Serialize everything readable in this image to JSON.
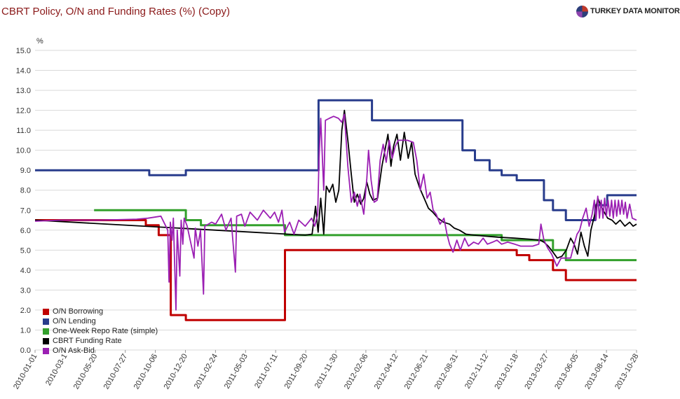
{
  "header": {
    "title": "CBRT Policy, O/N and Funding Rates (%) (Copy)",
    "brand": "TURKEY DATA MONITOR"
  },
  "chart_data": {
    "type": "line",
    "ylabel": "%",
    "ylim": [
      0,
      15
    ],
    "yticks": [
      "0.0",
      "1.0",
      "2.0",
      "3.0",
      "4.0",
      "5.0",
      "6.0",
      "7.0",
      "8.0",
      "9.0",
      "10.0",
      "11.0",
      "12.0",
      "13.0",
      "14.0",
      "15.0"
    ],
    "xlim": [
      "2010-01-01",
      "2013-10-28"
    ],
    "xticks": [
      "2010-01-01",
      "2010-03-1",
      "2010-05-20",
      "2010-07-27",
      "2010-10-06",
      "2010-12-20",
      "2011-02-24",
      "2011-05-03",
      "2011-07-11",
      "2011-09-20",
      "2011-11-30",
      "2012-02-06",
      "2012-04-12",
      "2012-06-21",
      "2012-08-31",
      "2012-11-12",
      "2013-01-18",
      "2013-03-27",
      "2013-06-05",
      "2013-08-14",
      "2013-10-28"
    ],
    "grid": true,
    "legend_position": "bottom-left",
    "series": [
      {
        "name": "O/N Borrowing",
        "color": "#c00000",
        "step": true,
        "points": [
          [
            "2010-01-01",
            6.5
          ],
          [
            "2010-09-15",
            6.25
          ],
          [
            "2010-10-15",
            5.75
          ],
          [
            "2010-11-12",
            1.75
          ],
          [
            "2010-12-17",
            1.5
          ],
          [
            "2011-08-04",
            5.0
          ],
          [
            "2013-01-23",
            4.75
          ],
          [
            "2013-02-21",
            4.5
          ],
          [
            "2013-04-17",
            4.0
          ],
          [
            "2013-05-17",
            3.5
          ],
          [
            "2013-10-28",
            3.5
          ]
        ]
      },
      {
        "name": "O/N Lending",
        "color": "#283c8c",
        "step": true,
        "points": [
          [
            "2010-01-01",
            9.0
          ],
          [
            "2010-09-23",
            8.75
          ],
          [
            "2010-12-17",
            9.0
          ],
          [
            "2011-10-21",
            12.5
          ],
          [
            "2012-02-22",
            11.5
          ],
          [
            "2012-09-19",
            10.0
          ],
          [
            "2012-10-18",
            9.5
          ],
          [
            "2012-11-21",
            9.0
          ],
          [
            "2012-12-19",
            8.75
          ],
          [
            "2013-01-23",
            8.5
          ],
          [
            "2013-03-27",
            7.5
          ],
          [
            "2013-04-17",
            7.0
          ],
          [
            "2013-05-17",
            6.5
          ],
          [
            "2013-07-24",
            7.25
          ],
          [
            "2013-08-21",
            7.75
          ],
          [
            "2013-10-28",
            7.75
          ]
        ]
      },
      {
        "name": "One-Week Repo Rate (simple)",
        "color": "#33a02c",
        "step": true,
        "points": [
          [
            "2010-05-18",
            7.0
          ],
          [
            "2010-12-17",
            6.5
          ],
          [
            "2011-01-21",
            6.25
          ],
          [
            "2011-08-04",
            5.75
          ],
          [
            "2012-12-19",
            5.5
          ],
          [
            "2013-04-17",
            5.0
          ],
          [
            "2013-05-17",
            4.5
          ],
          [
            "2013-10-28",
            4.5
          ]
        ]
      },
      {
        "name": "CBRT Funding Rate",
        "color": "#000000",
        "step": false,
        "points": [
          [
            "2010-01-01",
            6.5
          ],
          [
            "2011-09-20",
            5.75
          ],
          [
            "2011-10-06",
            5.8
          ],
          [
            "2011-10-14",
            7.2
          ],
          [
            "2011-10-20",
            5.9
          ],
          [
            "2011-10-26",
            7.6
          ],
          [
            "2011-11-02",
            5.8
          ],
          [
            "2011-11-08",
            8.2
          ],
          [
            "2011-11-15",
            7.9
          ],
          [
            "2011-11-23",
            8.3
          ],
          [
            "2011-11-30",
            7.4
          ],
          [
            "2011-12-07",
            8.0
          ],
          [
            "2011-12-14",
            11.0
          ],
          [
            "2011-12-20",
            12.0
          ],
          [
            "2011-12-28",
            10.5
          ],
          [
            "2012-01-05",
            8.8
          ],
          [
            "2012-01-12",
            7.4
          ],
          [
            "2012-01-19",
            7.8
          ],
          [
            "2012-01-27",
            7.3
          ],
          [
            "2012-02-03",
            7.6
          ],
          [
            "2012-02-10",
            8.4
          ],
          [
            "2012-02-17",
            7.8
          ],
          [
            "2012-02-24",
            7.5
          ],
          [
            "2012-03-06",
            7.6
          ],
          [
            "2012-03-16",
            9.2
          ],
          [
            "2012-03-23",
            10.0
          ],
          [
            "2012-03-30",
            10.8
          ],
          [
            "2012-04-06",
            9.2
          ],
          [
            "2012-04-12",
            10.2
          ],
          [
            "2012-04-20",
            10.8
          ],
          [
            "2012-04-28",
            9.5
          ],
          [
            "2012-05-07",
            10.9
          ],
          [
            "2012-05-16",
            9.6
          ],
          [
            "2012-05-24",
            10.4
          ],
          [
            "2012-06-01",
            8.8
          ],
          [
            "2012-06-12",
            8.1
          ],
          [
            "2012-06-22",
            7.6
          ],
          [
            "2012-07-02",
            7.1
          ],
          [
            "2012-07-12",
            6.9
          ],
          [
            "2012-07-24",
            6.6
          ],
          [
            "2012-08-06",
            6.4
          ],
          [
            "2012-08-20",
            6.3
          ],
          [
            "2012-08-31",
            6.1
          ],
          [
            "2012-09-12",
            6.0
          ],
          [
            "2012-09-27",
            5.8
          ],
          [
            "2012-10-15",
            5.75
          ],
          [
            "2012-11-12",
            5.7
          ],
          [
            "2012-12-10",
            5.65
          ],
          [
            "2013-01-18",
            5.6
          ],
          [
            "2013-02-20",
            5.55
          ],
          [
            "2013-03-18",
            5.5
          ],
          [
            "2013-03-27",
            5.4
          ],
          [
            "2013-04-06",
            5.2
          ],
          [
            "2013-04-17",
            4.9
          ],
          [
            "2013-04-27",
            4.6
          ],
          [
            "2013-05-08",
            4.7
          ],
          [
            "2013-05-18",
            5.0
          ],
          [
            "2013-05-28",
            5.6
          ],
          [
            "2013-06-05",
            5.3
          ],
          [
            "2013-06-13",
            4.8
          ],
          [
            "2013-06-21",
            5.9
          ],
          [
            "2013-06-29",
            5.2
          ],
          [
            "2013-07-07",
            4.7
          ],
          [
            "2013-07-14",
            6.0
          ],
          [
            "2013-07-22",
            6.7
          ],
          [
            "2013-07-30",
            7.6
          ],
          [
            "2013-08-07",
            7.2
          ],
          [
            "2013-08-14",
            6.9
          ],
          [
            "2013-08-22",
            6.6
          ],
          [
            "2013-09-01",
            6.5
          ],
          [
            "2013-09-10",
            6.3
          ],
          [
            "2013-09-20",
            6.5
          ],
          [
            "2013-10-01",
            6.2
          ],
          [
            "2013-10-12",
            6.4
          ],
          [
            "2013-10-20",
            6.2
          ],
          [
            "2013-10-28",
            6.3
          ]
        ]
      },
      {
        "name": "O/N Ask-Bid",
        "color": "#9b1fb3",
        "step": false,
        "points": [
          [
            "2010-01-01",
            6.45
          ],
          [
            "2010-03-01",
            6.5
          ],
          [
            "2010-06-01",
            6.5
          ],
          [
            "2010-08-25",
            6.55
          ],
          [
            "2010-09-20",
            6.6
          ],
          [
            "2010-10-20",
            6.7
          ],
          [
            "2010-11-05",
            6.0
          ],
          [
            "2010-11-08",
            3.4
          ],
          [
            "2010-11-11",
            6.4
          ],
          [
            "2010-11-15",
            5.5
          ],
          [
            "2010-11-18",
            6.6
          ],
          [
            "2010-11-24",
            2.0
          ],
          [
            "2010-11-27",
            6.0
          ],
          [
            "2010-12-03",
            3.7
          ],
          [
            "2010-12-06",
            6.5
          ],
          [
            "2010-12-10",
            5.3
          ],
          [
            "2010-12-13",
            6.6
          ],
          [
            "2010-12-20",
            6.2
          ],
          [
            "2011-01-05",
            4.6
          ],
          [
            "2011-01-08",
            6.1
          ],
          [
            "2011-01-14",
            5.2
          ],
          [
            "2011-01-20",
            6.0
          ],
          [
            "2011-01-27",
            2.8
          ],
          [
            "2011-01-30",
            6.2
          ],
          [
            "2011-02-15",
            6.4
          ],
          [
            "2011-02-24",
            6.3
          ],
          [
            "2011-03-10",
            6.8
          ],
          [
            "2011-03-20",
            6.0
          ],
          [
            "2011-04-01",
            6.6
          ],
          [
            "2011-04-11",
            3.9
          ],
          [
            "2011-04-14",
            6.7
          ],
          [
            "2011-04-25",
            6.8
          ],
          [
            "2011-05-03",
            6.2
          ],
          [
            "2011-05-15",
            6.9
          ],
          [
            "2011-06-01",
            6.5
          ],
          [
            "2011-06-15",
            7.0
          ],
          [
            "2011-07-01",
            6.6
          ],
          [
            "2011-07-11",
            6.9
          ],
          [
            "2011-07-20",
            6.4
          ],
          [
            "2011-07-28",
            7.0
          ],
          [
            "2011-08-03",
            5.9
          ],
          [
            "2011-08-15",
            6.4
          ],
          [
            "2011-08-25",
            5.8
          ],
          [
            "2011-09-05",
            6.5
          ],
          [
            "2011-09-20",
            6.2
          ],
          [
            "2011-10-05",
            6.6
          ],
          [
            "2011-10-12",
            6.2
          ],
          [
            "2011-10-19",
            6.8
          ],
          [
            "2011-10-22",
            9.5
          ],
          [
            "2011-10-26",
            11.6
          ],
          [
            "2011-11-02",
            8.0
          ],
          [
            "2011-11-06",
            11.5
          ],
          [
            "2011-11-15",
            11.6
          ],
          [
            "2011-11-25",
            11.7
          ],
          [
            "2011-12-06",
            11.6
          ],
          [
            "2011-12-14",
            11.4
          ],
          [
            "2011-12-20",
            11.8
          ],
          [
            "2011-12-28",
            9.2
          ],
          [
            "2012-01-05",
            7.4
          ],
          [
            "2012-01-12",
            7.9
          ],
          [
            "2012-01-19",
            7.2
          ],
          [
            "2012-01-25",
            7.8
          ],
          [
            "2012-02-03",
            6.8
          ],
          [
            "2012-02-10",
            8.6
          ],
          [
            "2012-02-14",
            10.0
          ],
          [
            "2012-02-20",
            8.5
          ],
          [
            "2012-02-27",
            7.4
          ],
          [
            "2012-03-05",
            7.5
          ],
          [
            "2012-03-12",
            9.5
          ],
          [
            "2012-03-19",
            10.3
          ],
          [
            "2012-03-26",
            9.4
          ],
          [
            "2012-04-02",
            10.5
          ],
          [
            "2012-04-09",
            9.6
          ],
          [
            "2012-04-16",
            10.2
          ],
          [
            "2012-04-23",
            10.5
          ],
          [
            "2012-05-01",
            10.5
          ],
          [
            "2012-05-14",
            10.5
          ],
          [
            "2012-05-28",
            10.4
          ],
          [
            "2012-06-05",
            9.5
          ],
          [
            "2012-06-13",
            8.0
          ],
          [
            "2012-06-21",
            8.8
          ],
          [
            "2012-06-29",
            7.6
          ],
          [
            "2012-07-06",
            7.9
          ],
          [
            "2012-07-13",
            7.0
          ],
          [
            "2012-07-20",
            6.8
          ],
          [
            "2012-07-29",
            6.3
          ],
          [
            "2012-08-07",
            6.6
          ],
          [
            "2012-08-14",
            5.8
          ],
          [
            "2012-08-20",
            5.3
          ],
          [
            "2012-08-28",
            4.9
          ],
          [
            "2012-09-06",
            5.5
          ],
          [
            "2012-09-14",
            5.0
          ],
          [
            "2012-09-24",
            5.6
          ],
          [
            "2012-10-03",
            5.2
          ],
          [
            "2012-10-15",
            5.4
          ],
          [
            "2012-10-26",
            5.3
          ],
          [
            "2012-11-06",
            5.6
          ],
          [
            "2012-11-16",
            5.3
          ],
          [
            "2012-11-28",
            5.4
          ],
          [
            "2012-12-08",
            5.5
          ],
          [
            "2012-12-19",
            5.3
          ],
          [
            "2013-01-02",
            5.4
          ],
          [
            "2013-01-18",
            5.3
          ],
          [
            "2013-02-01",
            5.2
          ],
          [
            "2013-02-15",
            5.2
          ],
          [
            "2013-03-01",
            5.2
          ],
          [
            "2013-03-15",
            5.3
          ],
          [
            "2013-03-20",
            6.3
          ],
          [
            "2013-03-27",
            5.5
          ],
          [
            "2013-04-05",
            5.1
          ],
          [
            "2013-04-14",
            4.8
          ],
          [
            "2013-04-26",
            4.2
          ],
          [
            "2013-05-06",
            4.6
          ],
          [
            "2013-05-17",
            4.6
          ],
          [
            "2013-05-28",
            4.6
          ],
          [
            "2013-06-04",
            5.2
          ],
          [
            "2013-06-12",
            5.8
          ],
          [
            "2013-06-18",
            6.0
          ],
          [
            "2013-06-25",
            6.6
          ],
          [
            "2013-07-03",
            7.1
          ],
          [
            "2013-07-10",
            6.2
          ],
          [
            "2013-07-17",
            6.8
          ],
          [
            "2013-07-22",
            7.5
          ],
          [
            "2013-07-26",
            6.5
          ],
          [
            "2013-07-30",
            7.7
          ],
          [
            "2013-08-03",
            6.6
          ],
          [
            "2013-08-07",
            7.5
          ],
          [
            "2013-08-11",
            6.6
          ],
          [
            "2013-08-15",
            7.6
          ],
          [
            "2013-08-19",
            6.7
          ],
          [
            "2013-08-23",
            7.5
          ],
          [
            "2013-08-27",
            6.7
          ],
          [
            "2013-08-31",
            7.5
          ],
          [
            "2013-09-04",
            6.6
          ],
          [
            "2013-09-08",
            7.5
          ],
          [
            "2013-09-12",
            6.7
          ],
          [
            "2013-09-16",
            7.5
          ],
          [
            "2013-09-20",
            6.8
          ],
          [
            "2013-09-24",
            7.5
          ],
          [
            "2013-09-28",
            6.8
          ],
          [
            "2013-10-02",
            7.4
          ],
          [
            "2013-10-06",
            6.6
          ],
          [
            "2013-10-12",
            7.3
          ],
          [
            "2013-10-18",
            6.6
          ],
          [
            "2013-10-28",
            6.5
          ]
        ]
      }
    ]
  }
}
